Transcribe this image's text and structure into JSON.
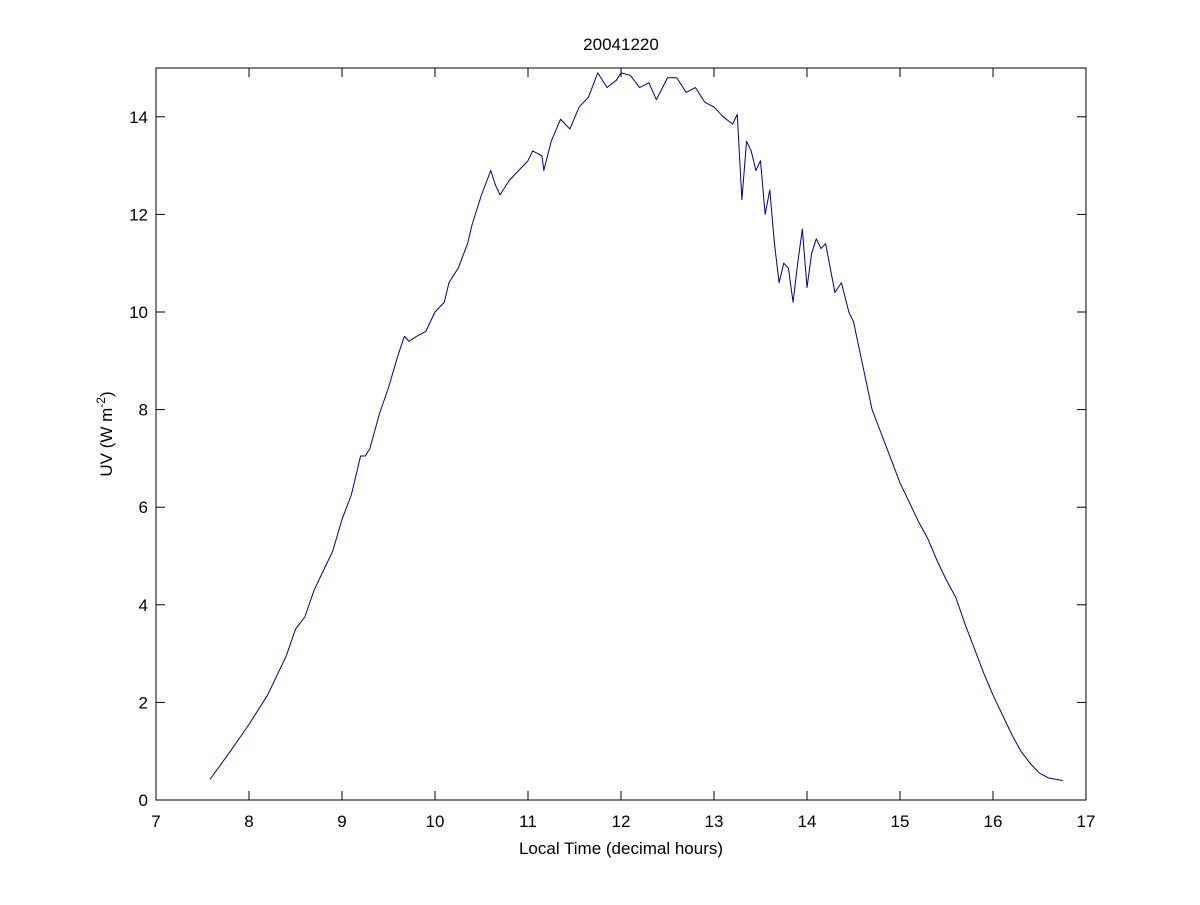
{
  "chart_data": {
    "type": "line",
    "title": "20041220",
    "xlabel": "Local Time (decimal hours)",
    "ylabel": {
      "text": "UV (W m",
      "sup": "-2",
      "suffix": ")"
    },
    "xlim": [
      7,
      17
    ],
    "xticks": [
      7,
      8,
      9,
      10,
      11,
      12,
      13,
      14,
      15,
      16,
      17
    ],
    "ylim": [
      0,
      15
    ],
    "yticks": [
      0,
      2,
      4,
      6,
      8,
      10,
      12,
      14
    ],
    "grid": false,
    "series": [
      {
        "color": "#00008b",
        "x": [
          7.58,
          7.8,
          8.0,
          8.2,
          8.4,
          8.5,
          8.6,
          8.7,
          8.8,
          8.9,
          9.0,
          9.1,
          9.2,
          9.25,
          9.3,
          9.4,
          9.5,
          9.6,
          9.67,
          9.72,
          9.8,
          9.9,
          10.0,
          10.1,
          10.15,
          10.25,
          10.35,
          10.4,
          10.5,
          10.6,
          10.65,
          10.7,
          10.8,
          10.9,
          11.0,
          11.05,
          11.15,
          11.17,
          11.25,
          11.35,
          11.45,
          11.55,
          11.65,
          11.75,
          11.85,
          11.95,
          12.0,
          12.1,
          12.2,
          12.3,
          12.38,
          12.5,
          12.6,
          12.7,
          12.8,
          12.9,
          13.0,
          13.1,
          13.2,
          13.25,
          13.3,
          13.35,
          13.4,
          13.45,
          13.5,
          13.55,
          13.6,
          13.65,
          13.7,
          13.75,
          13.8,
          13.85,
          13.9,
          13.95,
          14.0,
          14.05,
          14.1,
          14.15,
          14.2,
          14.3,
          14.37,
          14.45,
          14.5,
          14.6,
          14.7,
          14.8,
          14.9,
          15.0,
          15.1,
          15.2,
          15.3,
          15.4,
          15.5,
          15.6,
          15.7,
          15.8,
          15.9,
          16.0,
          16.1,
          16.2,
          16.3,
          16.4,
          16.5,
          16.6,
          16.75
        ],
        "values": [
          0.42,
          1.0,
          1.55,
          2.15,
          2.95,
          3.5,
          3.75,
          4.3,
          4.7,
          5.1,
          5.75,
          6.25,
          7.05,
          7.05,
          7.2,
          7.9,
          8.45,
          9.1,
          9.5,
          9.4,
          9.5,
          9.6,
          10.0,
          10.2,
          10.6,
          10.9,
          11.4,
          11.8,
          12.4,
          12.9,
          12.6,
          12.4,
          12.7,
          12.9,
          13.1,
          13.3,
          13.2,
          12.9,
          13.5,
          13.95,
          13.75,
          14.2,
          14.4,
          14.9,
          14.6,
          14.75,
          14.9,
          14.85,
          14.6,
          14.7,
          14.35,
          14.8,
          14.8,
          14.5,
          14.6,
          14.3,
          14.2,
          14.0,
          13.85,
          14.05,
          12.3,
          13.5,
          13.3,
          12.9,
          13.1,
          12.0,
          12.5,
          11.4,
          10.6,
          11.0,
          10.9,
          10.2,
          11.0,
          11.7,
          10.5,
          11.2,
          11.5,
          11.3,
          11.4,
          10.4,
          10.6,
          10.0,
          9.8,
          8.9,
          8.0,
          7.5,
          7.0,
          6.5,
          6.1,
          5.7,
          5.35,
          4.9,
          4.5,
          4.15,
          3.6,
          3.1,
          2.6,
          2.15,
          1.75,
          1.35,
          1.0,
          0.75,
          0.55,
          0.45,
          0.4
        ]
      }
    ]
  }
}
